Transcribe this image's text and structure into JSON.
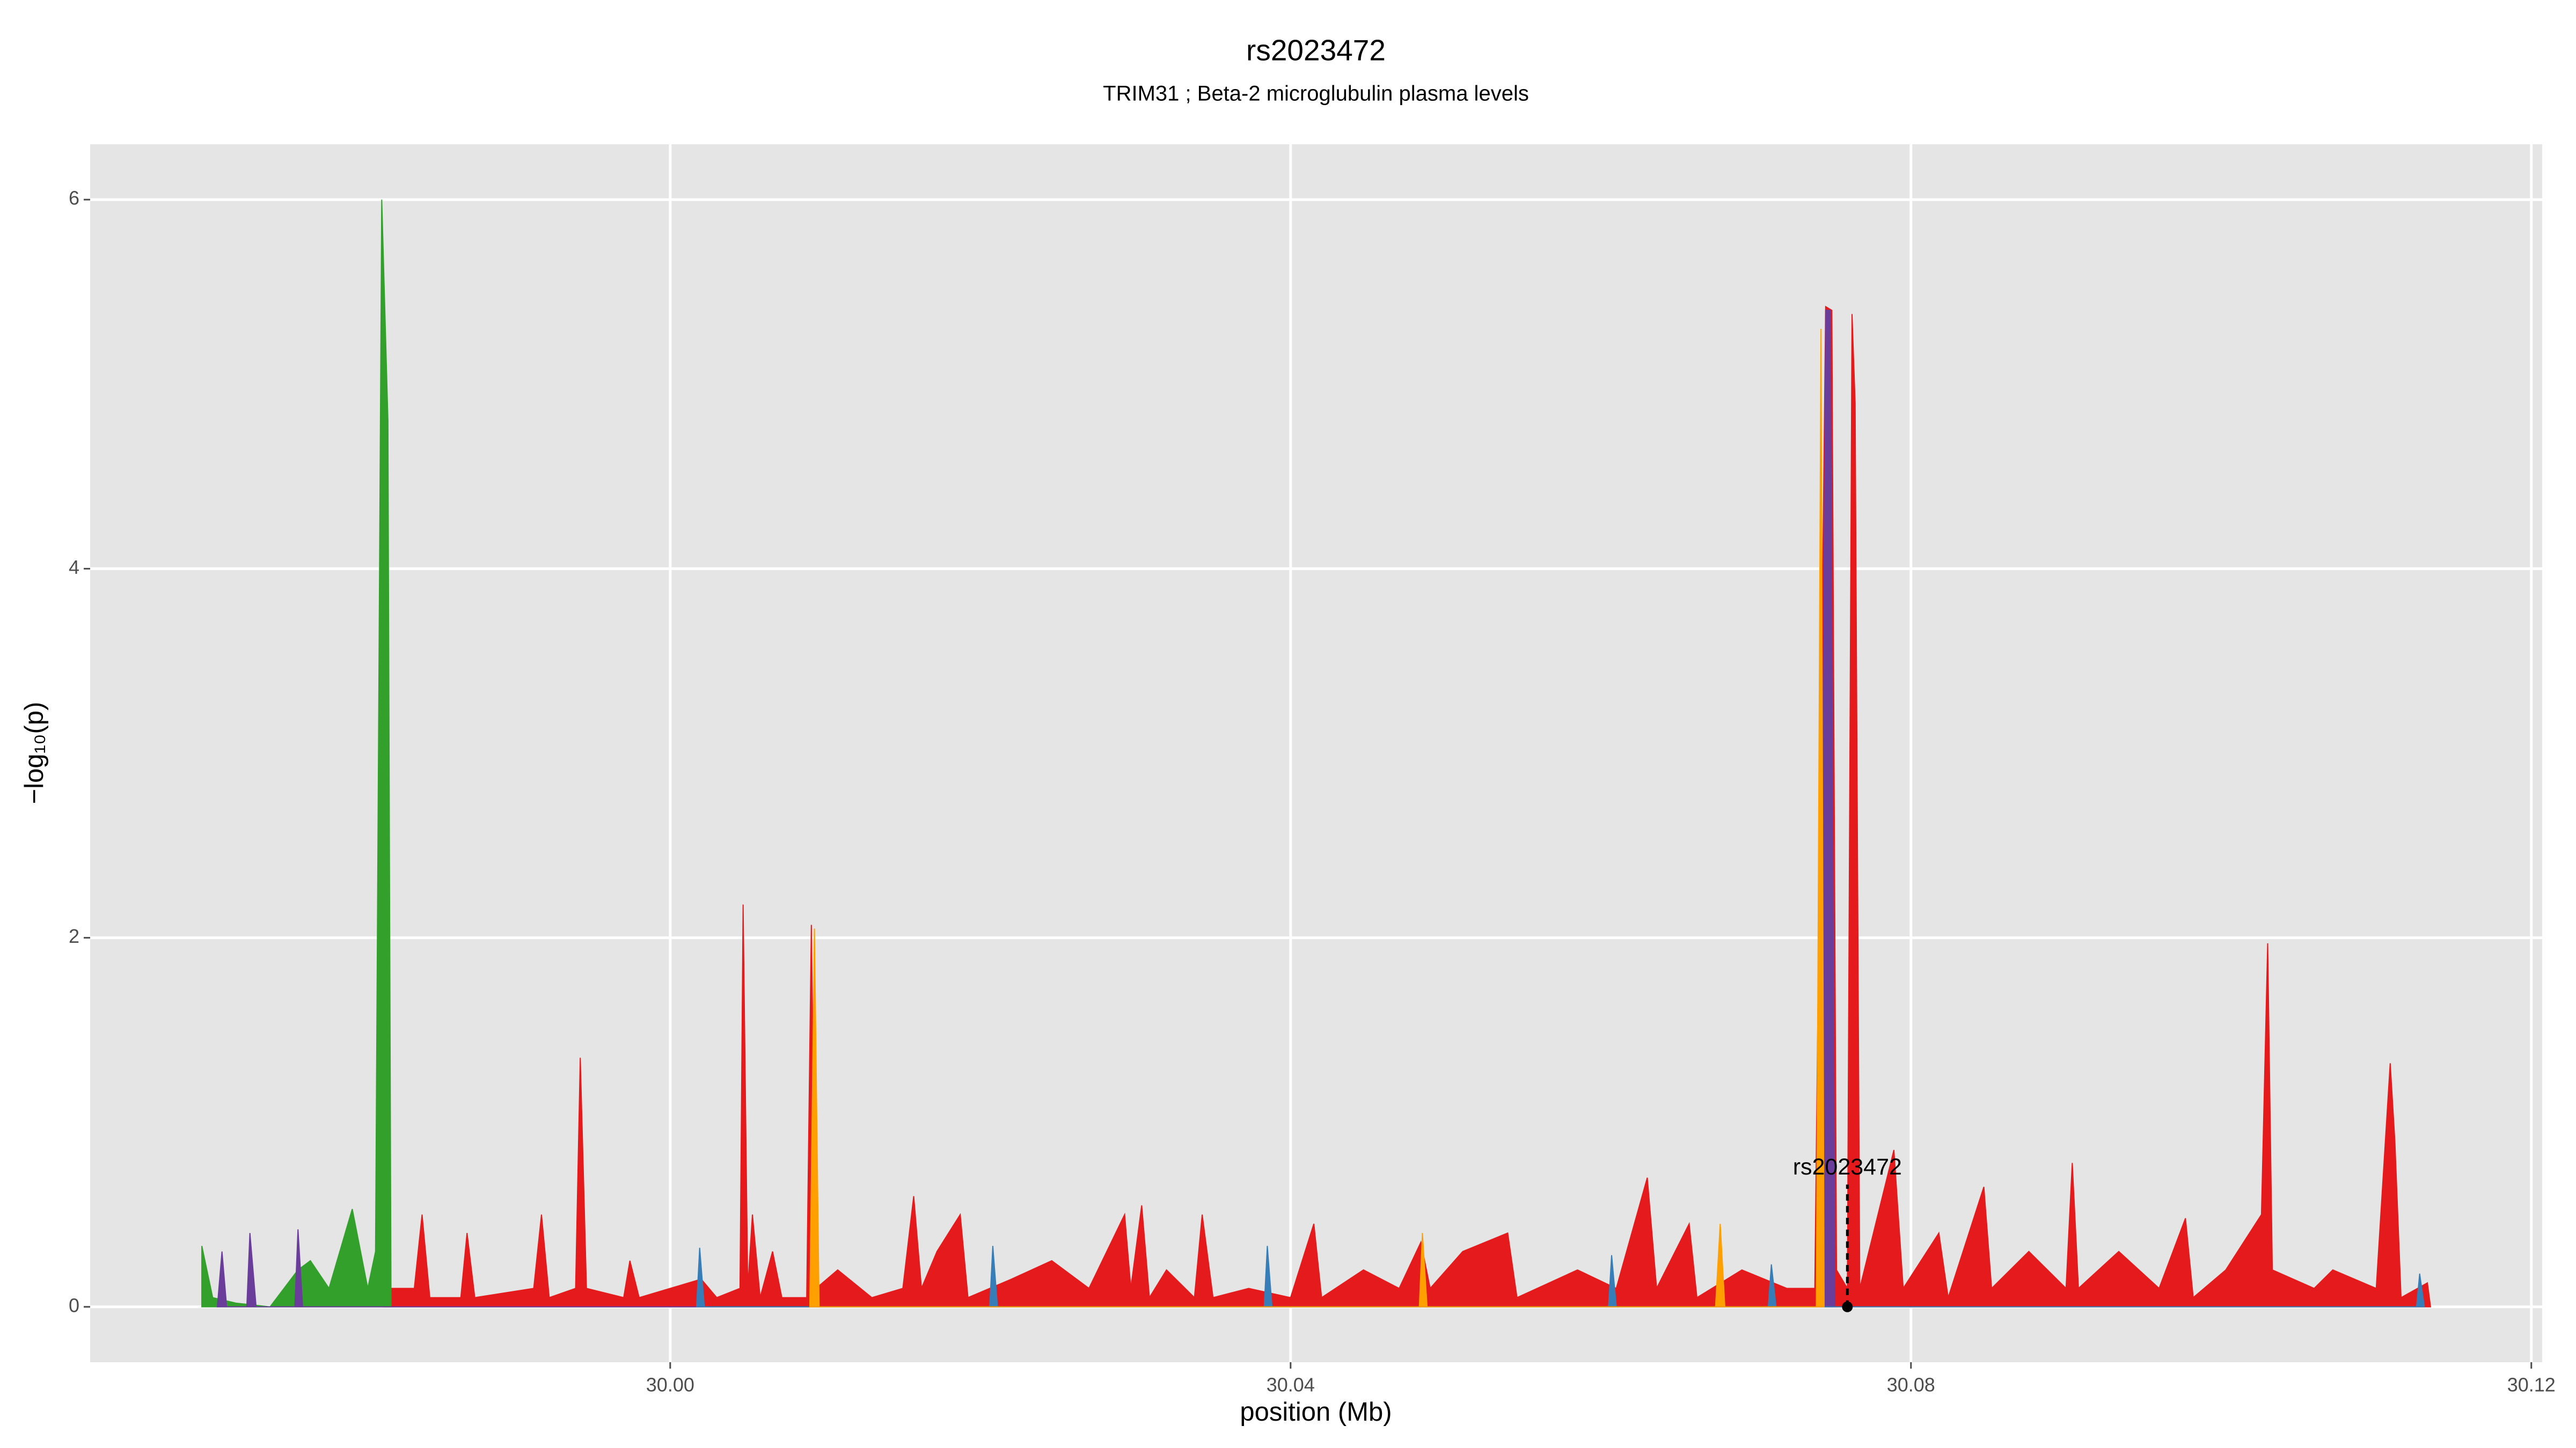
{
  "chart_data": {
    "type": "area",
    "title": "rs2023472",
    "subtitle": "TRIM31 ; Beta-2 microglubulin plasma levels",
    "x_label": "position (Mb)",
    "y_label": "−log₁₀(p)",
    "xlim": [
      29.9626,
      30.1207
    ],
    "ylim": [
      -0.3,
      6.3
    ],
    "xticks": [
      {
        "value": 30,
        "label": "30.00"
      },
      30.04,
      30.08,
      30.12
    ],
    "yticks": [
      0,
      2,
      4,
      6
    ],
    "grid": true,
    "series": [
      {
        "color": "#e41a1c",
        "x": [
          29.9815,
          29.9817,
          29.9819,
          29.9835,
          29.984,
          29.9845,
          29.9865,
          29.9869,
          29.9874,
          29.9912,
          29.9917,
          29.9922,
          29.9939,
          29.9942,
          29.9946,
          29.997,
          29.9974,
          29.998,
          30.0,
          30.002,
          30.003,
          30.0045,
          30.0047,
          30.005,
          30.0053,
          30.0058,
          30.0066,
          30.0072,
          30.0088,
          30.0091,
          30.0094,
          30.0108,
          30.013,
          30.015,
          30.0157,
          30.0162,
          30.0172,
          30.0187,
          30.0192,
          30.022,
          30.0246,
          30.027,
          30.0293,
          30.0297,
          30.0304,
          30.0309,
          30.032,
          30.0338,
          30.0343,
          30.035,
          30.0373,
          30.04,
          30.0415,
          30.042,
          30.0447,
          30.047,
          30.0484,
          30.049,
          30.0511,
          30.054,
          30.0546,
          30.0585,
          30.061,
          30.063,
          30.0636,
          30.0657,
          30.0662,
          30.0691,
          30.072,
          30.0738,
          30.0745,
          30.0749,
          30.0752,
          30.0759,
          30.0762,
          30.0764,
          30.0767,
          30.0789,
          30.0795,
          30.0818,
          30.0824,
          30.0847,
          30.0852,
          30.0876,
          30.09,
          30.0904,
          30.0908,
          30.0934,
          30.096,
          30.0977,
          30.0982,
          30.1003,
          30.1026,
          30.103,
          30.1033,
          30.106,
          30.1072,
          30.11,
          30.1109,
          30.1112,
          30.1116,
          30.1133,
          30.1135
        ],
        "values": [
          0,
          2.4,
          0.1,
          0.1,
          0.5,
          0.05,
          0.05,
          0.4,
          0.05,
          0.1,
          0.5,
          0.05,
          0.1,
          1.35,
          0.1,
          0.05,
          0.25,
          0.05,
          0.1,
          0.15,
          0.05,
          0.1,
          2.18,
          0.1,
          0.5,
          0.05,
          0.3,
          0.05,
          0.05,
          2.07,
          0.1,
          0.2,
          0.05,
          0.1,
          0.6,
          0.1,
          0.3,
          0.5,
          0.05,
          0.15,
          0.25,
          0.1,
          0.5,
          0.1,
          0.55,
          0.05,
          0.2,
          0.05,
          0.5,
          0.05,
          0.1,
          0.05,
          0.45,
          0.05,
          0.2,
          0.1,
          0.35,
          0.1,
          0.3,
          0.4,
          0.05,
          0.2,
          0.1,
          0.7,
          0.1,
          0.45,
          0.05,
          0.2,
          0.1,
          0.1,
          5.42,
          5.4,
          0.2,
          0.1,
          5.38,
          4.9,
          0.1,
          0.85,
          0.1,
          0.4,
          0.05,
          0.65,
          0.1,
          0.3,
          0.1,
          0.78,
          0.1,
          0.3,
          0.1,
          0.48,
          0.05,
          0.2,
          0.5,
          1.97,
          0.2,
          0.1,
          0.2,
          0.1,
          1.32,
          0.9,
          0.05,
          0.13,
          0
        ]
      },
      {
        "color": "#33a02c",
        "x": [
          29.9698,
          29.9705,
          29.972,
          29.9742,
          29.976,
          29.9768,
          29.978,
          29.9795,
          29.9805,
          29.981,
          29.9814,
          29.9818,
          29.982
        ],
        "values": [
          0.33,
          0.05,
          0.02,
          0,
          0.2,
          0.25,
          0.1,
          0.53,
          0.1,
          0.3,
          6.0,
          4.8,
          0
        ]
      },
      {
        "color": "#6a3d9a",
        "x": [
          29.9708,
          29.9711,
          29.9714,
          29.9727,
          29.9729,
          29.9733,
          29.9758,
          29.976,
          29.9763,
          30.0741,
          30.0745,
          30.0748,
          30.0751
        ],
        "values": [
          0,
          0.3,
          0,
          0,
          0.4,
          0,
          0,
          0.42,
          0,
          0,
          5.4,
          5.4,
          0
        ]
      },
      {
        "color": "#377eb8",
        "x": [
          30.0017,
          30.0019,
          30.0022,
          30.0206,
          30.0208,
          30.0211,
          30.0383,
          30.0385,
          30.0388,
          30.0605,
          30.0607,
          30.061,
          30.0708,
          30.071,
          30.0713,
          30.1126,
          30.1128,
          30.1131
        ],
        "values": [
          0,
          0.32,
          0,
          0,
          0.33,
          0,
          0,
          0.33,
          0,
          0,
          0.28,
          0,
          0,
          0.23,
          0,
          0,
          0.18,
          0
        ]
      },
      {
        "color": "#ff9f00",
        "x": [
          30.009,
          30.0093,
          30.0096,
          30.0483,
          30.0485,
          30.0488,
          30.0674,
          30.0677,
          30.068,
          30.0739,
          30.0742,
          30.0744
        ],
        "values": [
          0,
          2.05,
          0,
          0,
          0.4,
          0,
          0,
          0.45,
          0,
          0,
          5.3,
          0
        ]
      }
    ],
    "annotation": {
      "label": "rs2023472",
      "x": 30.0759,
      "y": 0,
      "label_y": 0.75
    }
  }
}
